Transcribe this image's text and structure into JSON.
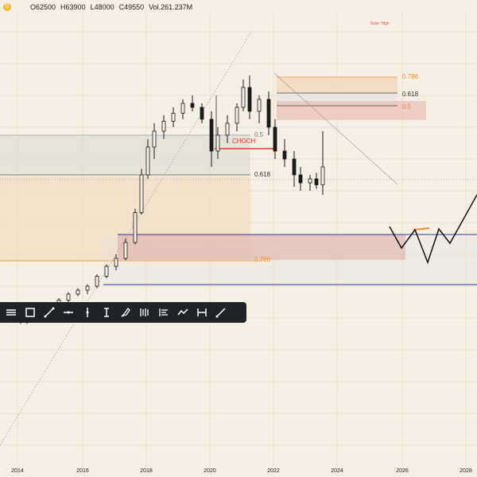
{
  "header": {
    "symbol_icon": "D",
    "open": "O62500",
    "high": "H63900",
    "low": "L48000",
    "close": "C49550",
    "volume": "Vol.261.237M"
  },
  "annotations": {
    "note_top": "Note: High",
    "choch": "CHOCH",
    "fib_upper": [
      "0.786",
      "0.618",
      "0.5"
    ],
    "fib_lower": [
      "0.5",
      "0.618",
      "0.786"
    ]
  },
  "x_axis": {
    "labels": [
      "2014",
      "2016",
      "2018",
      "2020",
      "2022",
      "2024",
      "2026",
      "2028"
    ]
  },
  "toolbar": {
    "tools": [
      "horizontal-lines-icon",
      "rectangle-icon",
      "trendline-icon",
      "horizontal-line-icon",
      "vertical-handle-icon",
      "text-cursor-icon",
      "brush-icon",
      "bars-icon",
      "indent-list-icon",
      "polyline-icon",
      "range-icon",
      "ray-icon"
    ]
  },
  "colors": {
    "background": "#f6efe3",
    "candle": "#1a1a1a",
    "orange_line": "#f28c28",
    "pink_zone": "#e8b1ad",
    "blue_line": "#2c3e9f",
    "red_choch": "#e53935",
    "toolbar_bg": "#1f2226"
  },
  "chart_data": {
    "type": "candlestick",
    "x": [
      "2014",
      "2016",
      "2018",
      "2020",
      "2022",
      "2024",
      "2026",
      "2028"
    ],
    "prices": [
      [
        2014.1,
        20,
        21,
        17,
        18
      ],
      [
        2014.3,
        18,
        22,
        17,
        21
      ],
      [
        2014.5,
        21,
        24,
        20,
        23
      ],
      [
        2014.8,
        23,
        25,
        21,
        22
      ],
      [
        2015.0,
        22,
        27,
        21,
        26
      ],
      [
        2015.3,
        26,
        30,
        25,
        29
      ],
      [
        2015.6,
        29,
        33,
        28,
        32
      ],
      [
        2015.9,
        32,
        35,
        31,
        34
      ],
      [
        2016.2,
        34,
        37,
        32,
        36
      ],
      [
        2016.5,
        36,
        42,
        35,
        41
      ],
      [
        2016.8,
        41,
        47,
        40,
        46
      ],
      [
        2017.1,
        46,
        52,
        44,
        50
      ],
      [
        2017.4,
        50,
        60,
        49,
        58
      ],
      [
        2017.7,
        58,
        75,
        57,
        73
      ],
      [
        2017.9,
        73,
        95,
        72,
        92
      ],
      [
        2018.1,
        92,
        110,
        90,
        106
      ],
      [
        2018.3,
        106,
        118,
        100,
        114
      ],
      [
        2018.6,
        114,
        122,
        110,
        119
      ],
      [
        2018.9,
        119,
        126,
        116,
        123
      ],
      [
        2019.2,
        123,
        130,
        120,
        128
      ],
      [
        2019.5,
        128,
        132,
        124,
        126
      ],
      [
        2019.8,
        126,
        128,
        118,
        120
      ],
      [
        2020.1,
        120,
        124,
        96,
        104
      ],
      [
        2020.3,
        104,
        116,
        100,
        112
      ],
      [
        2020.6,
        112,
        122,
        108,
        118
      ],
      [
        2020.9,
        118,
        128,
        114,
        126
      ],
      [
        2021.1,
        126,
        140,
        124,
        136
      ],
      [
        2021.3,
        136,
        142,
        120,
        124
      ],
      [
        2021.6,
        124,
        132,
        118,
        130
      ],
      [
        2021.9,
        130,
        134,
        112,
        116
      ],
      [
        2022.1,
        116,
        120,
        100,
        104
      ],
      [
        2022.4,
        104,
        110,
        96,
        100
      ],
      [
        2022.7,
        100,
        104,
        86,
        92
      ],
      [
        2022.9,
        92,
        96,
        84,
        88
      ],
      [
        2023.2,
        88,
        92,
        84,
        90
      ],
      [
        2023.4,
        90,
        93,
        85,
        87
      ],
      [
        2023.6,
        87,
        114,
        82,
        96
      ]
    ]
  }
}
